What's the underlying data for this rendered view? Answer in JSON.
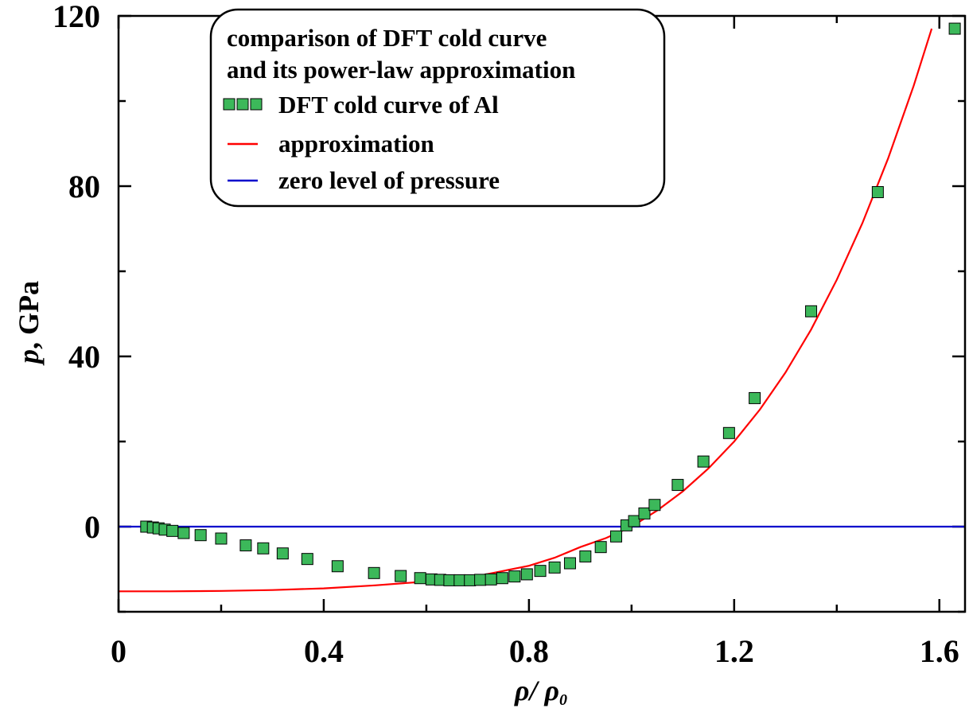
{
  "chart_data": {
    "type": "scatter",
    "legend": {
      "title_lines": [
        "comparison of DFT cold curve",
        "and its power-law approximation"
      ],
      "entries": [
        {
          "label": "DFT cold curve of Al",
          "kind": "markers",
          "color": "#3cb85a"
        },
        {
          "label": "approximation",
          "kind": "line",
          "color": "#ff0000"
        },
        {
          "label": "zero level of pressure",
          "kind": "line",
          "color": "#0000cc"
        }
      ],
      "placement": "top-left"
    },
    "xlabel": {
      "main": "ρ/ ρ",
      "sub": "0"
    },
    "ylabel": {
      "italic": "p",
      "rest": ", GPa"
    },
    "xlim": [
      0,
      1.65
    ],
    "ylim": [
      -20,
      120
    ],
    "x_ticks": [
      0,
      0.4,
      0.8,
      1.2,
      1.6
    ],
    "x_tick_labels": [
      "0",
      "0.4",
      "0.8",
      "1.2",
      "1.6"
    ],
    "y_ticks": [
      0,
      40,
      80,
      120
    ],
    "y_tick_labels": [
      "0",
      "40",
      "80",
      "120"
    ],
    "grid": false,
    "series": [
      {
        "name": "DFT cold curve of Al",
        "type": "scatter",
        "marker": "square",
        "color": "#3cb85a",
        "x": [
          0.054,
          0.067,
          0.078,
          0.09,
          0.105,
          0.127,
          0.16,
          0.2,
          0.248,
          0.282,
          0.32,
          0.368,
          0.427,
          0.498,
          0.55,
          0.588,
          0.61,
          0.627,
          0.645,
          0.665,
          0.685,
          0.705,
          0.726,
          0.748,
          0.772,
          0.796,
          0.822,
          0.85,
          0.88,
          0.91,
          0.94,
          0.97,
          0.99,
          1.005,
          1.025,
          1.045,
          1.09,
          1.14,
          1.19,
          1.24,
          1.35,
          1.48,
          1.63
        ],
        "y": [
          0.0,
          -0.2,
          -0.4,
          -0.7,
          -1.0,
          -1.5,
          -2.0,
          -2.8,
          -4.4,
          -5.1,
          -6.3,
          -7.6,
          -9.3,
          -10.9,
          -11.6,
          -12.1,
          -12.4,
          -12.5,
          -12.6,
          -12.6,
          -12.6,
          -12.5,
          -12.4,
          -12.1,
          -11.7,
          -11.2,
          -10.4,
          -9.6,
          -8.6,
          -7.0,
          -4.8,
          -2.3,
          0.3,
          1.3,
          3.1,
          5.1,
          9.8,
          15.3,
          22.0,
          30.2,
          50.6,
          78.6,
          117.0
        ]
      },
      {
        "name": "approximation",
        "type": "line",
        "color": "#ff0000",
        "x": [
          0.0,
          0.1,
          0.2,
          0.3,
          0.4,
          0.5,
          0.6,
          0.7,
          0.8,
          0.85,
          0.9,
          0.95,
          1.0,
          1.05,
          1.1,
          1.15,
          1.2,
          1.25,
          1.3,
          1.35,
          1.4,
          1.45,
          1.5,
          1.55,
          1.585
        ],
        "y": [
          -15.2,
          -15.2,
          -15.1,
          -14.9,
          -14.5,
          -13.8,
          -12.9,
          -11.6,
          -9.2,
          -7.3,
          -4.8,
          -2.7,
          0.0,
          3.8,
          8.3,
          13.7,
          20.0,
          27.5,
          36.2,
          46.3,
          58.0,
          71.3,
          86.5,
          103.6,
          117.0
        ]
      },
      {
        "name": "zero level of pressure",
        "type": "line",
        "color": "#0000cc",
        "x": [
          0.0,
          1.65
        ],
        "y": [
          0.0,
          0.0
        ]
      }
    ]
  }
}
